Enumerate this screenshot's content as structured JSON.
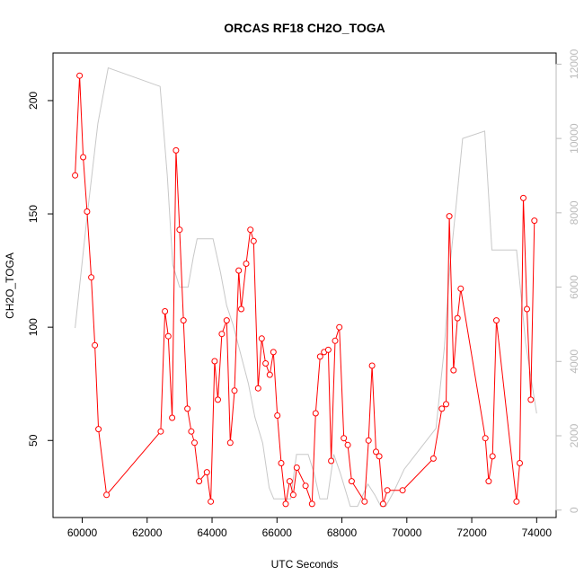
{
  "chart_data": {
    "type": "line",
    "title": "ORCAS RF18 CH2O_TOGA",
    "xlabel": "UTC Seconds",
    "ylabel": "CH2O_TOGA",
    "xlim": [
      59100,
      74600
    ],
    "ylim": [
      16,
      221
    ],
    "y2lim": [
      -200,
      12300
    ],
    "xticks": [
      60000,
      62000,
      64000,
      66000,
      68000,
      70000,
      72000,
      74000
    ],
    "yticks": [
      50,
      100,
      150,
      200
    ],
    "y2ticks": [
      0,
      2000,
      4000,
      6000,
      8000,
      10000,
      12000
    ],
    "grid": false,
    "legend": "none",
    "colors": {
      "primary": "#ff0000",
      "secondary": "#c8c8c8"
    },
    "series": [
      {
        "axis": "left",
        "color": "#ff0000",
        "points": [
          [
            59780,
            167
          ],
          [
            59920,
            211
          ],
          [
            60030,
            175
          ],
          [
            60150,
            151
          ],
          [
            60280,
            122
          ],
          [
            60390,
            92
          ],
          [
            60500,
            55
          ],
          [
            60750,
            26
          ],
          [
            62420,
            54
          ],
          [
            62550,
            107
          ],
          [
            62650,
            96
          ],
          [
            62770,
            60
          ],
          [
            62890,
            178
          ],
          [
            63000,
            143
          ],
          [
            63120,
            103
          ],
          [
            63240,
            64
          ],
          [
            63360,
            54
          ],
          [
            63460,
            49
          ],
          [
            63600,
            32
          ],
          [
            63840,
            36
          ],
          [
            63960,
            23
          ],
          [
            64080,
            85
          ],
          [
            64180,
            68
          ],
          [
            64300,
            97
          ],
          [
            64450,
            103
          ],
          [
            64560,
            49
          ],
          [
            64690,
            72
          ],
          [
            64820,
            125
          ],
          [
            64900,
            108
          ],
          [
            65050,
            128
          ],
          [
            65180,
            143
          ],
          [
            65280,
            138
          ],
          [
            65420,
            73
          ],
          [
            65530,
            95
          ],
          [
            65650,
            84
          ],
          [
            65780,
            79
          ],
          [
            65890,
            89
          ],
          [
            66010,
            61
          ],
          [
            66130,
            40
          ],
          [
            66270,
            22
          ],
          [
            66390,
            32
          ],
          [
            66500,
            26
          ],
          [
            66610,
            38
          ],
          [
            66880,
            30
          ],
          [
            67080,
            22
          ],
          [
            67190,
            62
          ],
          [
            67330,
            87
          ],
          [
            67450,
            89
          ],
          [
            67580,
            90
          ],
          [
            67670,
            41
          ],
          [
            67790,
            94
          ],
          [
            67920,
            100
          ],
          [
            68060,
            51
          ],
          [
            68180,
            48
          ],
          [
            68300,
            32
          ],
          [
            68700,
            23
          ],
          [
            68820,
            50
          ],
          [
            68930,
            83
          ],
          [
            69050,
            45
          ],
          [
            69150,
            43
          ],
          [
            69270,
            22
          ],
          [
            69400,
            28
          ],
          [
            69870,
            28
          ],
          [
            70820,
            42
          ],
          [
            71080,
            64
          ],
          [
            71210,
            66
          ],
          [
            71310,
            149
          ],
          [
            71440,
            81
          ],
          [
            71560,
            104
          ],
          [
            71660,
            117
          ],
          [
            72420,
            51
          ],
          [
            72520,
            32
          ],
          [
            72640,
            43
          ],
          [
            72760,
            103
          ],
          [
            73380,
            23
          ],
          [
            73480,
            40
          ],
          [
            73590,
            157
          ],
          [
            73700,
            108
          ],
          [
            73820,
            68
          ],
          [
            73930,
            147
          ]
        ]
      },
      {
        "axis": "right",
        "color": "#c8c8c8",
        "points": [
          [
            59780,
            4900
          ],
          [
            60150,
            7900
          ],
          [
            60480,
            10400
          ],
          [
            60800,
            11900
          ],
          [
            62400,
            11400
          ],
          [
            62620,
            9000
          ],
          [
            62790,
            6600
          ],
          [
            63000,
            6000
          ],
          [
            63260,
            6000
          ],
          [
            63420,
            6800
          ],
          [
            63540,
            7300
          ],
          [
            63700,
            7300
          ],
          [
            64030,
            7300
          ],
          [
            64260,
            6400
          ],
          [
            64450,
            5500
          ],
          [
            64640,
            5000
          ],
          [
            64820,
            4400
          ],
          [
            65120,
            3400
          ],
          [
            65320,
            2500
          ],
          [
            65560,
            1800
          ],
          [
            65760,
            600
          ],
          [
            65900,
            300
          ],
          [
            66240,
            300
          ],
          [
            66420,
            300
          ],
          [
            66600,
            1500
          ],
          [
            66960,
            1500
          ],
          [
            67140,
            1000
          ],
          [
            67320,
            300
          ],
          [
            67550,
            300
          ],
          [
            67750,
            1500
          ],
          [
            67950,
            1000
          ],
          [
            68260,
            100
          ],
          [
            68480,
            100
          ],
          [
            68800,
            700
          ],
          [
            69020,
            400
          ],
          [
            69200,
            100
          ],
          [
            69350,
            100
          ],
          [
            69600,
            500
          ],
          [
            69920,
            1100
          ],
          [
            70900,
            2200
          ],
          [
            71160,
            4400
          ],
          [
            71320,
            6500
          ],
          [
            71530,
            8300
          ],
          [
            71720,
            10000
          ],
          [
            72400,
            10200
          ],
          [
            72620,
            7000
          ],
          [
            72820,
            7000
          ],
          [
            73380,
            7000
          ],
          [
            73540,
            5600
          ],
          [
            73660,
            4500
          ],
          [
            73800,
            3700
          ],
          [
            74000,
            2600
          ]
        ]
      }
    ]
  }
}
